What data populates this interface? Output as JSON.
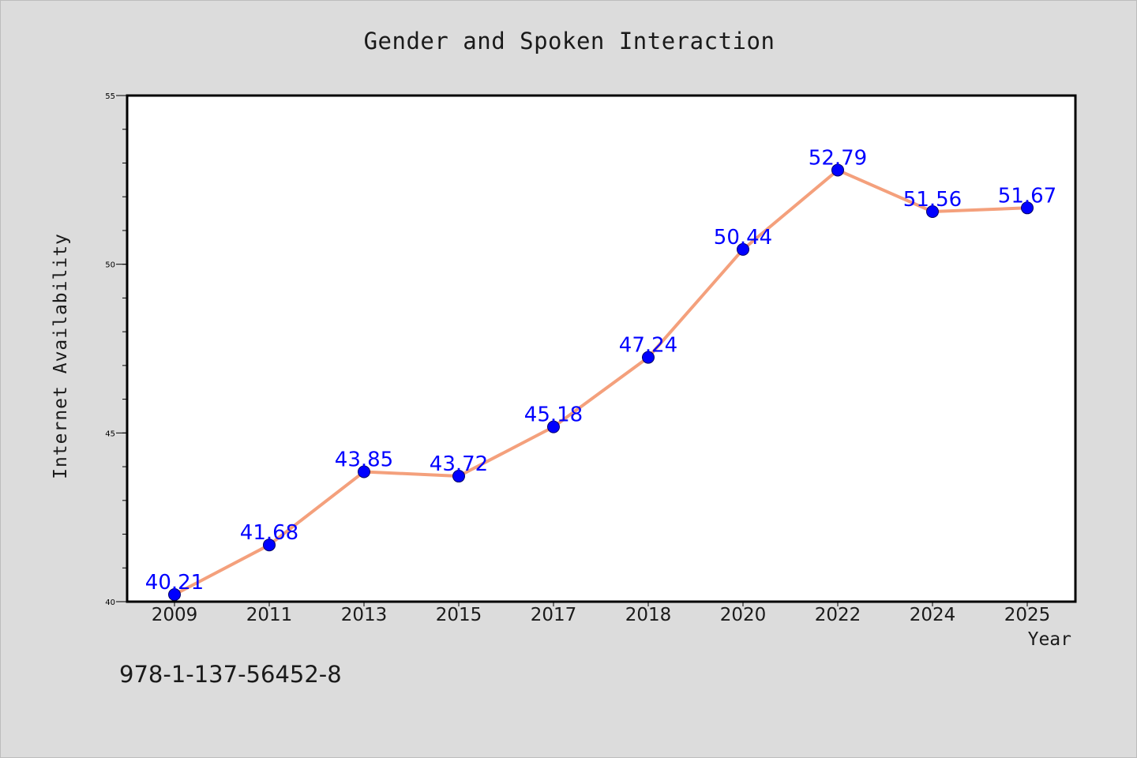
{
  "chart_data": {
    "type": "line",
    "title": "Gender and Spoken Interaction",
    "xlabel": "Year",
    "ylabel": "Internet Availability",
    "categories": [
      "2009",
      "2011",
      "2013",
      "2015",
      "2017",
      "2018",
      "2020",
      "2022",
      "2024",
      "2025"
    ],
    "series": [
      {
        "values": [
          40.21,
          41.68,
          43.85,
          43.72,
          45.18,
          47.24,
          50.44,
          52.79,
          51.56,
          51.67
        ],
        "data_labels": [
          "40.21",
          "41.68",
          "43.85",
          "43.72",
          "45.18",
          "47.24",
          "50.44",
          "52.79",
          "51.56",
          "51.67"
        ]
      }
    ],
    "ylim": [
      40,
      55
    ],
    "y_ticks_major": [
      40,
      45,
      50,
      55
    ],
    "y_tick_labels": [
      "40",
      "45",
      "50",
      "55"
    ],
    "y_minor_step": 1,
    "grid": false,
    "colors": {
      "line": "#f4a07c",
      "marker": "#0000ff",
      "data_label": "#0000ff"
    }
  },
  "footer": {
    "isbn": "978-1-137-56452-8"
  }
}
